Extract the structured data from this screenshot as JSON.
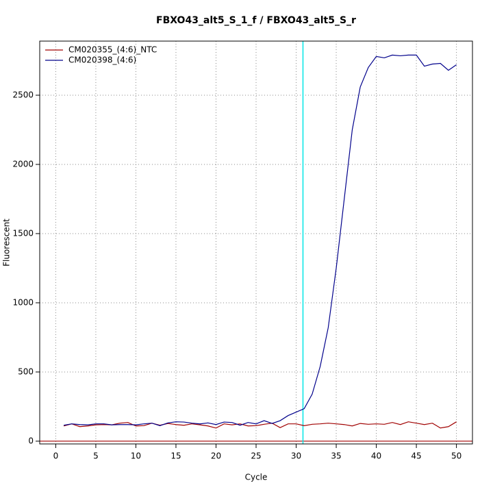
{
  "chart_data": {
    "type": "line",
    "title": "FBXO43_alt5_S_1_f / FBXO43_alt5_S_r",
    "x_label": "Cycle",
    "y_label": "Fluorescent",
    "x": [
      1,
      2,
      3,
      4,
      5,
      6,
      7,
      8,
      9,
      10,
      11,
      12,
      13,
      14,
      15,
      16,
      17,
      18,
      19,
      20,
      21,
      22,
      23,
      24,
      25,
      26,
      27,
      28,
      29,
      30,
      31,
      32,
      33,
      34,
      35,
      36,
      37,
      38,
      39,
      40,
      41,
      42,
      43,
      44,
      45,
      46,
      47,
      48,
      49,
      50
    ],
    "series": [
      {
        "name": "CM020355_(4:6)_NTC",
        "color": "#a00000",
        "values": [
          110,
          125,
          105,
          110,
          118,
          120,
          118,
          130,
          135,
          110,
          112,
          130,
          115,
          128,
          120,
          115,
          125,
          118,
          110,
          95,
          125,
          118,
          125,
          110,
          112,
          122,
          130,
          98,
          125,
          125,
          112,
          122,
          125,
          130,
          125,
          120,
          110,
          128,
          122,
          125,
          122,
          135,
          120,
          140,
          130,
          120,
          130,
          95,
          105,
          140
        ]
      },
      {
        "name": "CM020398_(4:6)",
        "color": "#00008b",
        "values": [
          115,
          125,
          120,
          118,
          125,
          125,
          118,
          120,
          120,
          118,
          125,
          130,
          112,
          132,
          140,
          138,
          130,
          125,
          132,
          120,
          138,
          135,
          115,
          135,
          125,
          148,
          128,
          148,
          185,
          210,
          235,
          340,
          540,
          820,
          1250,
          1750,
          2250,
          2560,
          2700,
          2780,
          2770,
          2790,
          2785,
          2790,
          2790,
          2710,
          2725,
          2730,
          2680,
          2720
        ]
      }
    ],
    "xlim": [
      -2,
      52
    ],
    "ylim": [
      -20,
      2891
    ],
    "xticks": [
      0,
      5,
      10,
      15,
      20,
      25,
      30,
      35,
      40,
      45,
      50
    ],
    "yticks": [
      0,
      500,
      1000,
      1500,
      2000,
      2500
    ],
    "grid": true,
    "legend": "top-left",
    "threshold_cycle": 30.85,
    "threshold_color": "#00e5e5",
    "baseline": 0,
    "baseline_color": "#a00000"
  }
}
